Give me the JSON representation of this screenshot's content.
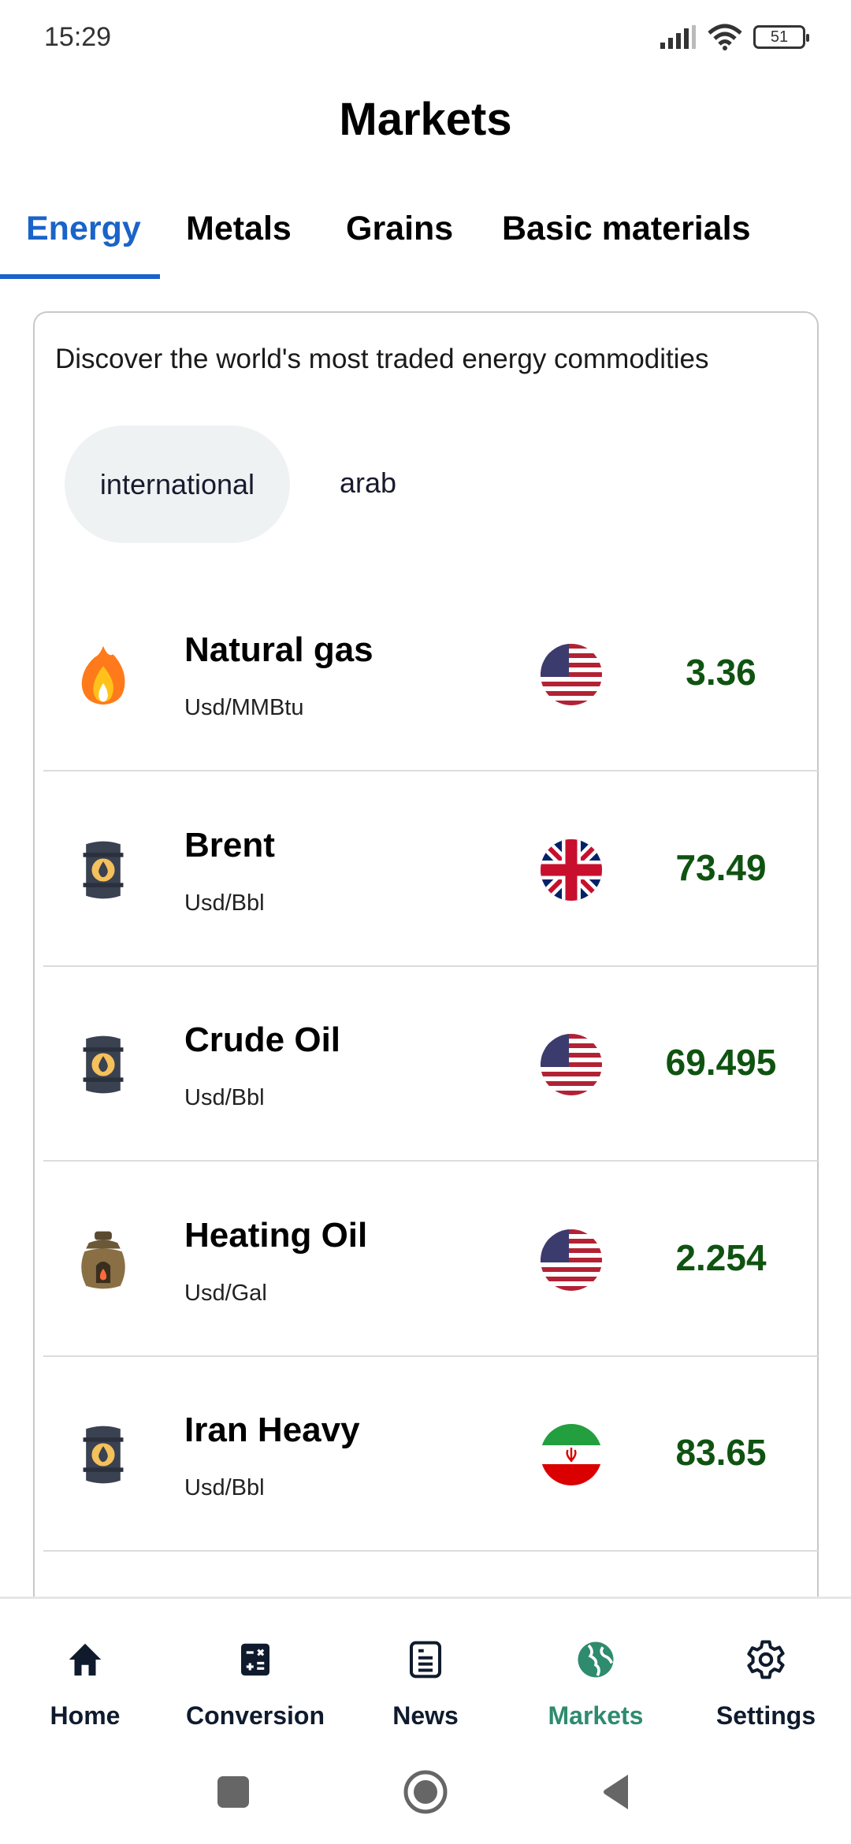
{
  "status_bar": {
    "time": "15:29",
    "battery": "51",
    "icons": [
      "signal-icon",
      "wifi-icon",
      "battery-icon"
    ]
  },
  "header": {
    "title": "Markets"
  },
  "tabs": [
    {
      "label": "Energy",
      "active": true
    },
    {
      "label": "Metals"
    },
    {
      "label": "Grains"
    },
    {
      "label": "Basic materials"
    }
  ],
  "card": {
    "description": "Discover the world's most traded energy commodities",
    "filters": [
      {
        "label": "international",
        "selected": true
      },
      {
        "label": "arab"
      }
    ],
    "items": [
      {
        "name": "Natural gas",
        "unit": "Usd/MMBtu",
        "price": "3.36",
        "icon": "flame-icon",
        "flag": "usa-flag"
      },
      {
        "name": "Brent",
        "unit": "Usd/Bbl",
        "price": "73.49",
        "icon": "oil-barrel-icon",
        "flag": "uk-flag"
      },
      {
        "name": "Crude Oil",
        "unit": "Usd/Bbl",
        "price": "69.495",
        "icon": "oil-barrel-icon",
        "flag": "usa-flag"
      },
      {
        "name": "Heating Oil",
        "unit": "Usd/Gal",
        "price": "2.254",
        "icon": "heater-icon",
        "flag": "usa-flag"
      },
      {
        "name": "Iran Heavy",
        "unit": "Usd/Bbl",
        "price": "83.65",
        "icon": "oil-barrel-icon",
        "flag": "iran-flag"
      }
    ]
  },
  "nav": [
    {
      "label": "Home"
    },
    {
      "label": "Conversion"
    },
    {
      "label": "News"
    },
    {
      "label": "Markets",
      "active": true
    },
    {
      "label": "Settings"
    }
  ],
  "colors": {
    "accent": "#1a63c9",
    "price": "#0f5311",
    "nav_active": "#2e8b6e"
  }
}
